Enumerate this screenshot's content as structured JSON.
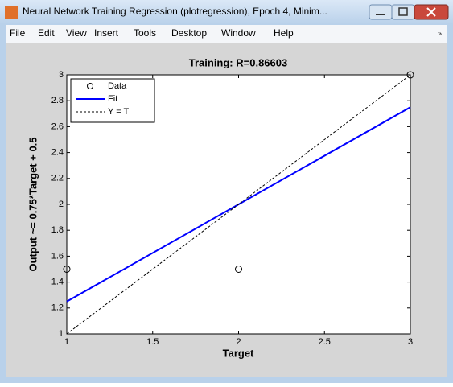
{
  "window": {
    "title": "Neural Network Training Regression (plotregression), Epoch 4, Minim...",
    "menu": [
      "File",
      "Edit",
      "View",
      "Insert",
      "Tools",
      "Desktop",
      "Window",
      "Help"
    ]
  },
  "chart_data": {
    "type": "scatter",
    "title": "Training: R=0.86603",
    "xlabel": "Target",
    "ylabel": "Output ~= 0.75*Target + 0.5",
    "xlim": [
      1,
      3
    ],
    "ylim": [
      1,
      3
    ],
    "xticks": [
      1,
      1.5,
      2,
      2.5,
      3
    ],
    "yticks": [
      1,
      1.2,
      1.4,
      1.6,
      1.8,
      2,
      2.2,
      2.4,
      2.6,
      2.8,
      3
    ],
    "legend": "upper left",
    "series": [
      {
        "name": "Data",
        "color": "#000000",
        "mode": "markers",
        "x": [
          1,
          2,
          3
        ],
        "values": [
          1.5,
          1.5,
          3
        ]
      },
      {
        "name": "Fit",
        "color": "#0000ff",
        "mode": "line",
        "x": [
          1,
          3
        ],
        "values": [
          1.25,
          2.75
        ]
      },
      {
        "name": "Y = T",
        "color": "#000000",
        "mode": "dashed",
        "x": [
          1,
          3
        ],
        "values": [
          1,
          3
        ]
      }
    ]
  }
}
